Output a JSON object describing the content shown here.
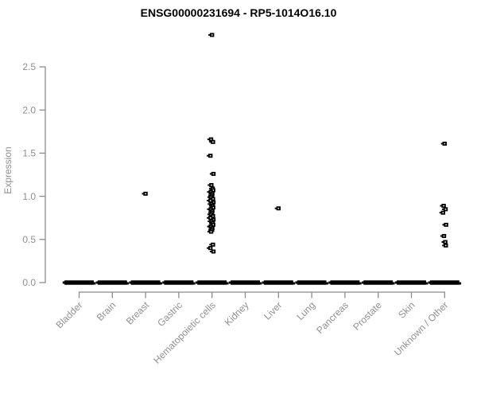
{
  "title": "ENSG00000231694 - RP5-1014O16.10",
  "colors": {
    "axis_line": "#8b8b8b",
    "axis_text": "#8f8f8f",
    "title_text": "#000000",
    "point": "#000000",
    "background": "#ffffff"
  },
  "chart_data": {
    "type": "scatter",
    "title": "ENSG00000231694 - RP5-1014O16.10",
    "xlabel": "",
    "ylabel": "Expression",
    "ylim": [
      0,
      2.5
    ],
    "yticks": [
      0,
      0.5,
      1,
      1.5,
      2,
      2.5
    ],
    "grid": false,
    "legend_position": "none",
    "marker": "small-black-square",
    "categories": [
      "Bladder",
      "Brain",
      "Breast",
      "Gastric",
      "Hematopoietic cells",
      "Kidney",
      "Liver",
      "Lung",
      "Pancreas",
      "Prostate",
      "Skin",
      "Unknown / Other"
    ],
    "series": [
      {
        "category": "Bladder",
        "nonzero_values": [],
        "zero_cluster": true
      },
      {
        "category": "Brain",
        "nonzero_values": [],
        "zero_cluster": true
      },
      {
        "category": "Breast",
        "nonzero_values": [
          1.03
        ],
        "zero_cluster": true
      },
      {
        "category": "Gastric",
        "nonzero_values": [],
        "zero_cluster": true
      },
      {
        "category": "Hematopoietic cells",
        "nonzero_values": [
          2.87,
          1.66,
          1.63,
          1.47,
          1.26,
          1.13,
          1.09,
          1.07,
          1.05,
          1.03,
          1.01,
          0.99,
          0.97,
          0.95,
          0.93,
          0.91,
          0.89,
          0.87,
          0.85,
          0.83,
          0.81,
          0.79,
          0.77,
          0.75,
          0.73,
          0.71,
          0.69,
          0.67,
          0.65,
          0.63,
          0.61,
          0.59,
          0.44,
          0.4,
          0.36
        ],
        "zero_cluster": true
      },
      {
        "category": "Kidney",
        "nonzero_values": [],
        "zero_cluster": true
      },
      {
        "category": "Liver",
        "nonzero_values": [
          0.86
        ],
        "zero_cluster": true
      },
      {
        "category": "Lung",
        "nonzero_values": [],
        "zero_cluster": true
      },
      {
        "category": "Pancreas",
        "nonzero_values": [],
        "zero_cluster": true
      },
      {
        "category": "Prostate",
        "nonzero_values": [],
        "zero_cluster": true
      },
      {
        "category": "Skin",
        "nonzero_values": [],
        "zero_cluster": true
      },
      {
        "category": "Unknown / Other",
        "nonzero_values": [
          1.61,
          0.89,
          0.85,
          0.81,
          0.67,
          0.54,
          0.47,
          0.43
        ],
        "zero_cluster": true
      }
    ]
  }
}
